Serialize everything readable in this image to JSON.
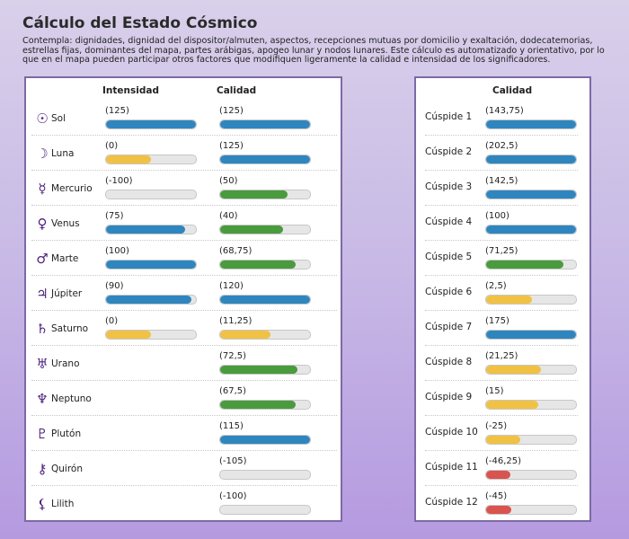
{
  "title": "Cálculo del Estado Cósmico",
  "description": "Contempla: dignidades, dignidad del dispositor/almuten, aspectos, recepciones mutuas por domicilio y exaltación, dodecatemorias, estrellas fijas, dominantes del mapa, partes arábigas, apogeo lunar y nodos lunares. Este cálculo es automatizado y orientativo, por lo que en el mapa pueden participar otros factores que modifiquen ligeramente la calidad e intensidad de los significadores.",
  "colors": {
    "blue": "#2f86bf",
    "green": "#4a9a3e",
    "yellow": "#f0c143",
    "red": "#d9534f",
    "glyph": "#4b1f7a"
  },
  "planets_panel": {
    "intensity_header": "Intensidad",
    "quality_header": "Calidad",
    "rows": [
      {
        "name": "Sol",
        "icon": "sun-icon",
        "glyph": "☉",
        "intensity": {
          "label": "(125)",
          "level": 1.0,
          "color": "blue"
        },
        "quality": {
          "label": "(125)",
          "level": 1.0,
          "color": "blue"
        }
      },
      {
        "name": "Luna",
        "icon": "moon-icon",
        "glyph": "☽",
        "intensity": {
          "label": "(0)",
          "level": 0.5,
          "color": "yellow"
        },
        "quality": {
          "label": "(125)",
          "level": 1.0,
          "color": "blue"
        }
      },
      {
        "name": "Mercurio",
        "icon": "mercury-icon",
        "glyph": "☿",
        "intensity": {
          "label": "(-100)",
          "level": 0.0,
          "color": "red"
        },
        "quality": {
          "label": "(50)",
          "level": 0.75,
          "color": "green"
        }
      },
      {
        "name": "Venus",
        "icon": "venus-icon",
        "glyph": "♀",
        "intensity": {
          "label": "(75)",
          "level": 0.88,
          "color": "blue"
        },
        "quality": {
          "label": "(40)",
          "level": 0.7,
          "color": "green"
        }
      },
      {
        "name": "Marte",
        "icon": "mars-icon",
        "glyph": "♂",
        "intensity": {
          "label": "(100)",
          "level": 1.0,
          "color": "blue"
        },
        "quality": {
          "label": "(68,75)",
          "level": 0.84,
          "color": "green"
        }
      },
      {
        "name": "Júpiter",
        "icon": "jupiter-icon",
        "glyph": "♃",
        "intensity": {
          "label": "(90)",
          "level": 0.95,
          "color": "blue"
        },
        "quality": {
          "label": "(120)",
          "level": 1.0,
          "color": "blue"
        }
      },
      {
        "name": "Saturno",
        "icon": "saturn-icon",
        "glyph": "♄",
        "intensity": {
          "label": "(0)",
          "level": 0.5,
          "color": "yellow"
        },
        "quality": {
          "label": "(11,25)",
          "level": 0.56,
          "color": "yellow"
        }
      },
      {
        "name": "Urano",
        "icon": "uranus-icon",
        "glyph": "♅",
        "intensity": null,
        "quality": {
          "label": "(72,5)",
          "level": 0.86,
          "color": "green"
        }
      },
      {
        "name": "Neptuno",
        "icon": "neptune-icon",
        "glyph": "♆",
        "intensity": null,
        "quality": {
          "label": "(67,5)",
          "level": 0.84,
          "color": "green"
        }
      },
      {
        "name": "Plutón",
        "icon": "pluto-icon",
        "glyph": "♇",
        "intensity": null,
        "quality": {
          "label": "(115)",
          "level": 1.0,
          "color": "blue"
        }
      },
      {
        "name": "Quirón",
        "icon": "chiron-icon",
        "glyph": "⚷",
        "intensity": null,
        "quality": {
          "label": "(-105)",
          "level": 0.0,
          "color": "red"
        }
      },
      {
        "name": "Lilith",
        "icon": "lilith-icon",
        "glyph": "⚸",
        "intensity": null,
        "quality": {
          "label": "(-100)",
          "level": 0.0,
          "color": "red"
        }
      }
    ]
  },
  "cusps_panel": {
    "quality_header": "Calidad",
    "rows": [
      {
        "name": "Cúspide 1",
        "quality": {
          "label": "(143,75)",
          "level": 1.0,
          "color": "blue"
        }
      },
      {
        "name": "Cúspide 2",
        "quality": {
          "label": "(202,5)",
          "level": 1.0,
          "color": "blue"
        }
      },
      {
        "name": "Cúspide 3",
        "quality": {
          "label": "(142,5)",
          "level": 1.0,
          "color": "blue"
        }
      },
      {
        "name": "Cúspide 4",
        "quality": {
          "label": "(100)",
          "level": 1.0,
          "color": "blue"
        }
      },
      {
        "name": "Cúspide 5",
        "quality": {
          "label": "(71,25)",
          "level": 0.86,
          "color": "green"
        }
      },
      {
        "name": "Cúspide 6",
        "quality": {
          "label": "(2,5)",
          "level": 0.51,
          "color": "yellow"
        }
      },
      {
        "name": "Cúspide 7",
        "quality": {
          "label": "(175)",
          "level": 1.0,
          "color": "blue"
        }
      },
      {
        "name": "Cúspide 8",
        "quality": {
          "label": "(21,25)",
          "level": 0.61,
          "color": "yellow"
        }
      },
      {
        "name": "Cúspide 9",
        "quality": {
          "label": "(15)",
          "level": 0.58,
          "color": "yellow"
        }
      },
      {
        "name": "Cúspide 10",
        "quality": {
          "label": "(-25)",
          "level": 0.38,
          "color": "yellow"
        }
      },
      {
        "name": "Cúspide 11",
        "quality": {
          "label": "(-46,25)",
          "level": 0.27,
          "color": "red"
        }
      },
      {
        "name": "Cúspide 12",
        "quality": {
          "label": "(-45)",
          "level": 0.28,
          "color": "red"
        }
      }
    ]
  }
}
